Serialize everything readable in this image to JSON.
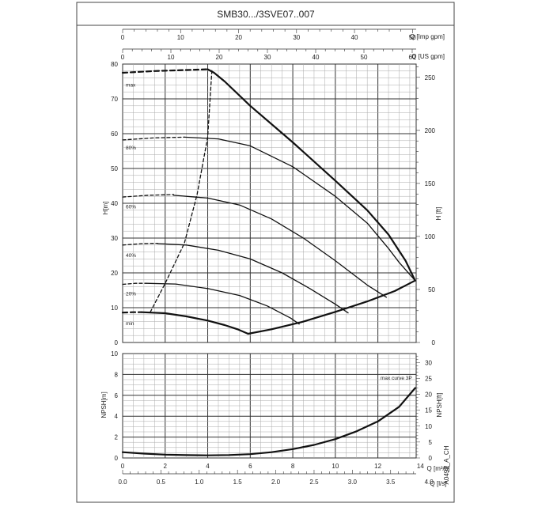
{
  "title": "SMB30.../3SVE07..007",
  "code": "A0499_A_CH",
  "top_axes": [
    {
      "label": "Q [Imp gpm]",
      "min": 0,
      "max": 50.64,
      "ticks": [
        0,
        10,
        20,
        30,
        40,
        50
      ]
    },
    {
      "label": "Q [US gpm]",
      "min": 0,
      "max": 60.82,
      "ticks": [
        0,
        10,
        20,
        30,
        40,
        50,
        60
      ]
    }
  ],
  "bottom_axes": [
    {
      "label": "Q [m³/h]",
      "min": 0,
      "max": 13.8,
      "ticks": [
        0,
        2,
        4,
        6,
        8,
        10,
        12,
        14
      ]
    },
    {
      "label": "Q [l/s]",
      "min": 0,
      "max": 3.8333,
      "ticks": [
        "0.0",
        "0.5",
        "1.0",
        "1.5",
        "2.0",
        "2.5",
        "3.0",
        "3.5",
        "4.0"
      ]
    }
  ],
  "chart_data": [
    {
      "type": "line",
      "title": "SMB30.../3SVE07..007",
      "xlabel": "Q [m³/h]",
      "ylabel": "H[m]",
      "ylabel_right": "H [ft]",
      "xlim": [
        0,
        13.8
      ],
      "ylim": [
        0,
        80
      ],
      "ylim_right_ft": [
        0,
        262.5
      ],
      "yticks": [
        0,
        10,
        20,
        30,
        40,
        50,
        60,
        70,
        80
      ],
      "yticks_right": [
        0,
        50,
        100,
        150,
        200,
        250
      ],
      "grid": true,
      "series": [
        {
          "name": "max",
          "style": "bold-dashed",
          "x": [
            0,
            1.5,
            3,
            4.0
          ],
          "y": [
            77.5,
            78.0,
            78.3,
            78.5
          ]
        },
        {
          "name": "max",
          "style": "bold",
          "x": [
            4.0,
            4.3,
            4.8,
            6.0,
            8.0,
            10.0,
            11.5,
            12.5,
            13.3,
            13.75
          ],
          "y": [
            78.5,
            77.5,
            75,
            68,
            57.5,
            46.5,
            38,
            31,
            23.5,
            17.8
          ]
        },
        {
          "name": "80%",
          "style": "dashed",
          "x": [
            0,
            1.5,
            2.9
          ],
          "y": [
            58.2,
            58.8,
            59.0
          ]
        },
        {
          "name": "80%",
          "style": "solid",
          "x": [
            2.9,
            4.5,
            6.0,
            8.0,
            10.0,
            11.5,
            12.5,
            13.0,
            13.75
          ],
          "y": [
            59.0,
            58.5,
            56.5,
            50.5,
            42,
            34.3,
            27,
            23,
            17.8
          ]
        },
        {
          "name": "60%",
          "style": "dashed",
          "x": [
            0,
            1.2,
            2.4
          ],
          "y": [
            41.8,
            42.3,
            42.5
          ]
        },
        {
          "name": "60%",
          "style": "solid",
          "x": [
            2.4,
            4.0,
            5.5,
            7.0,
            8.5,
            10.0,
            11.5,
            12.4
          ],
          "y": [
            42.3,
            41.5,
            39.5,
            35.5,
            30,
            23.5,
            16.5,
            13.0
          ]
        },
        {
          "name": "40%",
          "style": "dashed",
          "x": [
            0,
            0.9,
            1.65
          ],
          "y": [
            28.0,
            28.4,
            28.5
          ]
        },
        {
          "name": "40%",
          "style": "solid",
          "x": [
            1.65,
            3.0,
            4.5,
            6.0,
            7.5,
            8.8,
            10.0,
            10.6
          ],
          "y": [
            28.4,
            28.0,
            26.5,
            24,
            20,
            15.5,
            11,
            8.5
          ]
        },
        {
          "name": "20%",
          "style": "dashed",
          "x": [
            0,
            0.6,
            1.1
          ],
          "y": [
            16.7,
            17.0,
            17.0
          ]
        },
        {
          "name": "20%",
          "style": "solid",
          "x": [
            1.1,
            2.5,
            4.0,
            5.5,
            6.8,
            7.9,
            8.3
          ],
          "y": [
            17.0,
            16.8,
            15.5,
            13.5,
            10.5,
            7,
            5.3
          ]
        },
        {
          "name": "min",
          "style": "bold-dashed",
          "x": [
            0,
            0.5,
            0.9
          ],
          "y": [
            8.6,
            8.7,
            8.7
          ]
        },
        {
          "name": "min",
          "style": "bold",
          "x": [
            0.9,
            2.0,
            3.0,
            4.0,
            4.8,
            5.4,
            5.9
          ],
          "y": [
            8.7,
            8.4,
            7.5,
            6.3,
            5.0,
            3.8,
            2.5
          ]
        },
        {
          "name": "min",
          "style": "bold",
          "x": [
            5.9,
            7.0,
            8.5,
            10.0,
            11.5,
            12.8,
            13.75
          ],
          "y": [
            2.5,
            3.8,
            6.0,
            8.8,
            11.8,
            14.8,
            17.8
          ]
        },
        {
          "name": "max",
          "style": "dashed",
          "x": [
            1.3,
            2.0,
            2.9,
            3.5,
            4.0,
            4.2
          ],
          "y": [
            8.7,
            17.0,
            28.5,
            42.5,
            59.0,
            78.5
          ]
        }
      ]
    },
    {
      "type": "line",
      "xlabel": "Q [m³/h]",
      "ylabel": "NPSH[m]",
      "ylabel_right": "NPSH[ft]",
      "xlim": [
        0,
        13.8
      ],
      "ylim": [
        0,
        10
      ],
      "ylim_right_ft": [
        0,
        32.8
      ],
      "yticks": [
        0,
        2,
        4,
        6,
        8,
        10
      ],
      "yticks_right": [
        0,
        5,
        10,
        15,
        20,
        25,
        30
      ],
      "grid": true,
      "annotation": "max curve 3P",
      "series": [
        {
          "name": "max curve 3P",
          "style": "bold",
          "x": [
            0,
            1.0,
            2.0,
            3.0,
            4.0,
            5.0,
            6.0,
            7.0,
            8.0,
            9.0,
            10.0,
            11.0,
            12.0,
            13.0,
            13.75
          ],
          "y": [
            0.55,
            0.42,
            0.32,
            0.27,
            0.25,
            0.28,
            0.36,
            0.55,
            0.85,
            1.25,
            1.8,
            2.55,
            3.5,
            4.9,
            6.7
          ]
        }
      ]
    }
  ],
  "curve_labels": [
    {
      "text": "max",
      "x": 0.15,
      "y": 73.5
    },
    {
      "text": "80%",
      "x": 0.15,
      "y": 55.5
    },
    {
      "text": "60%",
      "x": 0.15,
      "y": 38.5
    },
    {
      "text": "40%",
      "x": 0.15,
      "y": 24.5
    },
    {
      "text": "20%",
      "x": 0.15,
      "y": 13.5
    },
    {
      "text": "min",
      "x": 0.15,
      "y": 5.0
    }
  ]
}
